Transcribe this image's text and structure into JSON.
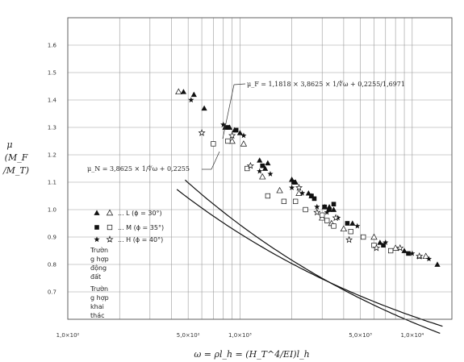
{
  "chart_data": {
    "type": "scatter",
    "x_scale": "log",
    "xlim": [
      100,
      17000
    ],
    "ylim": [
      0.6,
      1.7
    ],
    "grid": true,
    "xlabel": "ω = ρl_h = (H_T^4/EI)l_h",
    "ylabel": [
      "μ",
      "(M_F",
      "/M_T)"
    ],
    "x_ticks": [
      {
        "v": 100,
        "label": "1,0×10²"
      },
      {
        "v": 500,
        "label": "5,0×10²"
      },
      {
        "v": 1000,
        "label": "1,0×10³"
      },
      {
        "v": 5000,
        "label": "5,0×10³"
      },
      {
        "v": 10000,
        "label": "1,0×10⁴"
      }
    ],
    "y_ticks": [
      {
        "v": 0.7,
        "label": "0.7"
      },
      {
        "v": 0.8,
        "label": "0.8"
      },
      {
        "v": 0.9,
        "label": "0.9"
      },
      {
        "v": 1.0,
        "label": "1.0"
      },
      {
        "v": 1.1,
        "label": "1.1"
      },
      {
        "v": 1.2,
        "label": "1.2"
      },
      {
        "v": 1.3,
        "label": "1.3"
      },
      {
        "v": 1.4,
        "label": "1.4"
      },
      {
        "v": 1.5,
        "label": "1.5"
      },
      {
        "v": 1.6,
        "label": "1.6"
      }
    ],
    "curves": [
      {
        "name": "μ_F",
        "formula": "μ_F = 1,1818 × 3,8625 × 1/∜ω + 0,2255/1,6971",
        "equation": {
          "coef": 4.5647,
          "offset": 0.1329
        },
        "x_range": [
          480,
          14500
        ]
      },
      {
        "name": "μ_N",
        "formula": "μ_N = 3,8625 × 1/∜ω + 0,2255",
        "equation": {
          "coef": 3.8625,
          "offset": 0.2255
        },
        "x_range": [
          430,
          15000
        ]
      }
    ],
    "series": [
      {
        "name": "L (ϕ = 30°)",
        "case": "seismic",
        "marker": "triangle-filled",
        "points": [
          [
            470,
            1.43
          ],
          [
            540,
            1.42
          ],
          [
            620,
            1.37
          ],
          [
            820,
            1.3
          ],
          [
            870,
            1.3
          ],
          [
            930,
            1.29
          ],
          [
            1000,
            1.28
          ],
          [
            1300,
            1.18
          ],
          [
            1400,
            1.15
          ],
          [
            1450,
            1.17
          ],
          [
            2000,
            1.11
          ],
          [
            2100,
            1.1
          ],
          [
            2500,
            1.06
          ],
          [
            2600,
            1.05
          ],
          [
            3100,
            1.01
          ],
          [
            3300,
            1.01
          ],
          [
            3500,
            1.0
          ],
          [
            4500,
            0.95
          ],
          [
            6500,
            0.88
          ],
          [
            9000,
            0.85
          ],
          [
            11000,
            0.83
          ],
          [
            14000,
            0.8
          ]
        ]
      },
      {
        "name": "L (ϕ = 30°)",
        "case": "operating",
        "marker": "triangle-open",
        "points": [
          [
            440,
            1.43
          ],
          [
            900,
            1.25
          ],
          [
            1050,
            1.24
          ],
          [
            1350,
            1.12
          ],
          [
            1700,
            1.07
          ],
          [
            2200,
            1.06
          ],
          [
            3000,
            0.97
          ],
          [
            3400,
            0.95
          ],
          [
            4000,
            0.93
          ],
          [
            6000,
            0.9
          ],
          [
            8000,
            0.86
          ],
          [
            12000,
            0.83
          ]
        ]
      },
      {
        "name": "M (ϕ = 35°)",
        "case": "seismic",
        "marker": "square-filled",
        "points": [
          [
            850,
            1.3
          ],
          [
            950,
            1.29
          ],
          [
            1350,
            1.16
          ],
          [
            2050,
            1.1
          ],
          [
            2600,
            1.05
          ],
          [
            2700,
            1.04
          ],
          [
            3100,
            1.01
          ],
          [
            3300,
            1.0
          ],
          [
            3500,
            1.02
          ],
          [
            4200,
            0.95
          ],
          [
            6800,
            0.87
          ],
          [
            9500,
            0.84
          ]
        ]
      },
      {
        "name": "M (ϕ = 35°)",
        "case": "operating",
        "marker": "square-open",
        "points": [
          [
            700,
            1.24
          ],
          [
            850,
            1.25
          ],
          [
            1100,
            1.15
          ],
          [
            1450,
            1.05
          ],
          [
            1800,
            1.03
          ],
          [
            2100,
            1.03
          ],
          [
            2400,
            1.0
          ],
          [
            3000,
            0.98
          ],
          [
            3200,
            0.96
          ],
          [
            3500,
            0.94
          ],
          [
            4400,
            0.92
          ],
          [
            5200,
            0.9
          ],
          [
            6000,
            0.87
          ],
          [
            7500,
            0.85
          ]
        ]
      },
      {
        "name": "H (ϕ = 40°)",
        "case": "seismic",
        "marker": "star-filled",
        "points": [
          [
            520,
            1.4
          ],
          [
            800,
            1.31
          ],
          [
            1050,
            1.27
          ],
          [
            1300,
            1.14
          ],
          [
            1500,
            1.13
          ],
          [
            2000,
            1.08
          ],
          [
            2300,
            1.06
          ],
          [
            2800,
            1.01
          ],
          [
            3200,
            0.99
          ],
          [
            3700,
            0.97
          ],
          [
            4800,
            0.94
          ],
          [
            7000,
            0.88
          ],
          [
            10000,
            0.84
          ],
          [
            12500,
            0.82
          ]
        ]
      },
      {
        "name": "H (ϕ = 40°)",
        "case": "operating",
        "marker": "star-open",
        "points": [
          [
            600,
            1.28
          ],
          [
            900,
            1.27
          ],
          [
            1150,
            1.16
          ],
          [
            2200,
            1.08
          ],
          [
            2800,
            0.99
          ],
          [
            3600,
            0.97
          ],
          [
            4300,
            0.89
          ],
          [
            6200,
            0.86
          ],
          [
            8500,
            0.86
          ],
          [
            11000,
            0.83
          ]
        ]
      }
    ],
    "legend": {
      "placement": "left",
      "entries": [
        {
          "label": "... L (ϕ = 30°)",
          "filled": "triangle-filled",
          "open": "triangle-open"
        },
        {
          "label": "... M (ϕ = 35°)",
          "filled": "square-filled",
          "open": "square-open"
        },
        {
          "label": "... H (ϕ = 40°)",
          "filled": "star-filled",
          "open": "star-open"
        }
      ],
      "notes": [
        [
          "Trườn",
          "g hợp",
          "động",
          "đất"
        ],
        [
          "Trườn",
          "g hợp",
          "khai",
          "thác"
        ]
      ]
    }
  }
}
